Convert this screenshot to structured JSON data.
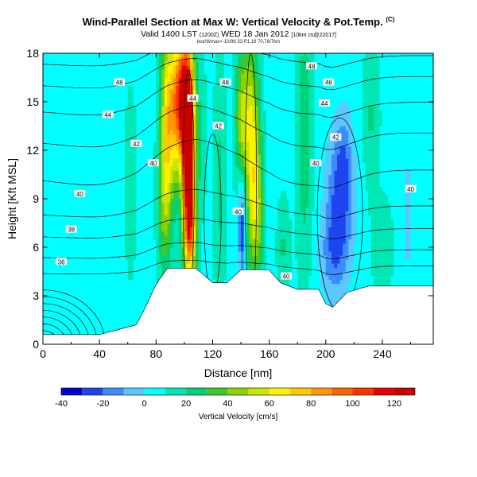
{
  "title": {
    "main": "Wind-Parallel Section at Max W: Vertical Velocity & Pot.Temp.",
    "tag": "(C)",
    "line2": "Valid 1400 LST",
    "line2_utc": "(1200Z)",
    "line2_date": "WED 18 Jan 2012",
    "line2_run": "[10km cs@22017]",
    "line3": "box/Wmax=-10/98 33 P1,19 70,76/7km"
  },
  "chart_data": {
    "type": "contour",
    "xlabel": "Distance [nm]",
    "ylabel": "Height [Kft MSL]",
    "xlim": [
      0,
      276
    ],
    "ylim": [
      0,
      18
    ],
    "xticks": [
      0,
      40,
      80,
      120,
      160,
      200,
      240
    ],
    "yticks": [
      0,
      3,
      6,
      9,
      12,
      15,
      18
    ],
    "colorbar": {
      "label": "Vertical Velocity [cm/s]",
      "ticks": [
        -40,
        -20,
        0,
        20,
        40,
        60,
        80,
        100,
        120
      ],
      "levels": [
        -40,
        -30,
        -20,
        -10,
        0,
        10,
        20,
        30,
        40,
        50,
        60,
        70,
        80,
        90,
        100,
        110,
        120,
        130
      ],
      "colors": [
        "#0000d2",
        "#1e46f0",
        "#3c8cff",
        "#5ac8ff",
        "#00ffff",
        "#00e6b4",
        "#00d278",
        "#3cc828",
        "#8cd200",
        "#c8e600",
        "#fff000",
        "#ffc800",
        "#ff9600",
        "#ff6400",
        "#ff3200",
        "#e60000",
        "#c80000"
      ]
    },
    "background_w": 7,
    "w_features": [
      {
        "x": 88,
        "z": 13.5,
        "sx": 3.5,
        "sz": 4.5,
        "w": 60
      },
      {
        "x": 96,
        "z": 15,
        "sx": 4,
        "sz": 3,
        "w": 80
      },
      {
        "x": 103,
        "z": 11,
        "sx": 3.2,
        "sz": 3.5,
        "w": 112
      },
      {
        "x": 102,
        "z": 15.5,
        "sx": 3.5,
        "sz": 2.5,
        "w": 80
      },
      {
        "x": 104,
        "z": 7,
        "sx": 3,
        "sz": 2.5,
        "w": 55
      },
      {
        "x": 85,
        "z": 8,
        "sx": 3,
        "sz": 3,
        "w": 20
      },
      {
        "x": 112,
        "z": 13,
        "sx": 3,
        "sz": 3,
        "w": 10
      },
      {
        "x": 147,
        "z": 12,
        "sx": 4,
        "sz": 4.5,
        "w": 62
      },
      {
        "x": 140,
        "z": 14,
        "sx": 3,
        "sz": 3,
        "w": 35
      },
      {
        "x": 152,
        "z": 8,
        "sx": 3,
        "sz": 3,
        "w": 30
      },
      {
        "x": 141,
        "z": 7.5,
        "sx": 2,
        "sz": 2.5,
        "w": -45
      },
      {
        "x": 145,
        "z": 11,
        "sx": 2,
        "sz": 2,
        "w": -12
      },
      {
        "x": 210,
        "z": 9,
        "sx": 7,
        "sz": 3,
        "w": -30
      },
      {
        "x": 205,
        "z": 5.5,
        "sx": 7,
        "sz": 2,
        "w": -18
      },
      {
        "x": 213,
        "z": 12,
        "sx": 4,
        "sz": 2,
        "w": -12
      },
      {
        "x": 258,
        "z": 8,
        "sx": 2,
        "sz": 2.5,
        "w": -15
      },
      {
        "x": 185,
        "z": 13,
        "sx": 4,
        "sz": 6,
        "w": 20
      },
      {
        "x": 232,
        "z": 14,
        "sx": 4,
        "sz": 3,
        "w": 14
      },
      {
        "x": 125,
        "z": 10,
        "sx": 3,
        "sz": 5,
        "w": 15
      },
      {
        "x": 62,
        "z": 10,
        "sx": 3,
        "sz": 4,
        "w": 10
      },
      {
        "x": 170,
        "z": 6,
        "sx": 3,
        "sz": 2,
        "w": 14
      },
      {
        "x": 240,
        "z": 6,
        "sx": 5,
        "sz": 2,
        "w": 12
      }
    ],
    "terrain": [
      [
        0,
        0.6
      ],
      [
        40,
        0.6
      ],
      [
        66,
        1.2
      ],
      [
        72,
        2.2
      ],
      [
        80,
        3.7
      ],
      [
        88,
        4.7
      ],
      [
        108,
        4.7
      ],
      [
        115,
        4.2
      ],
      [
        120,
        3.8
      ],
      [
        130,
        3.8
      ],
      [
        140,
        4.6
      ],
      [
        160,
        4.6
      ],
      [
        168,
        3.8
      ],
      [
        180,
        3.4
      ],
      [
        195,
        3.4
      ],
      [
        200,
        2.5
      ],
      [
        205,
        2.3
      ],
      [
        215,
        3.2
      ],
      [
        230,
        3.6
      ],
      [
        276,
        3.6
      ]
    ],
    "theta_labels": [
      {
        "text": "48",
        "x": 54,
        "z": 16.2
      },
      {
        "text": "48",
        "x": 129,
        "z": 16.2
      },
      {
        "text": "48",
        "x": 190,
        "z": 17.2
      },
      {
        "text": "46",
        "x": 202,
        "z": 16.2
      },
      {
        "text": "44",
        "x": 46,
        "z": 14.2
      },
      {
        "text": "44",
        "x": 106,
        "z": 15.2
      },
      {
        "text": "44",
        "x": 199,
        "z": 14.9
      },
      {
        "text": "42",
        "x": 66,
        "z": 12.4
      },
      {
        "text": "42",
        "x": 124,
        "z": 13.5
      },
      {
        "text": "42",
        "x": 207,
        "z": 12.8
      },
      {
        "text": "40",
        "x": 78,
        "z": 11.2
      },
      {
        "text": "40",
        "x": 26,
        "z": 9.3
      },
      {
        "text": "40",
        "x": 138,
        "z": 8.2
      },
      {
        "text": "40",
        "x": 193,
        "z": 11.2
      },
      {
        "text": "40",
        "x": 260,
        "z": 9.6
      },
      {
        "text": "40",
        "x": 172,
        "z": 4.2
      },
      {
        "text": "38",
        "x": 20,
        "z": 7.1
      },
      {
        "text": "36",
        "x": 13,
        "z": 5.1
      }
    ],
    "theta_levels": [
      {
        "base": 17.3,
        "amp": 0.7
      },
      {
        "base": 16.0,
        "amp": 1.0
      },
      {
        "base": 14.4,
        "amp": 1.3
      },
      {
        "base": 12.5,
        "amp": 1.6
      },
      {
        "base": 10.2,
        "amp": 1.8
      },
      {
        "base": 8.0,
        "amp": 0.9
      },
      {
        "base": 6.6,
        "amp": 0.5
      },
      {
        "base": 5.3,
        "amp": 0.3
      },
      {
        "base": 4.3,
        "amp": 0.2
      }
    ]
  }
}
